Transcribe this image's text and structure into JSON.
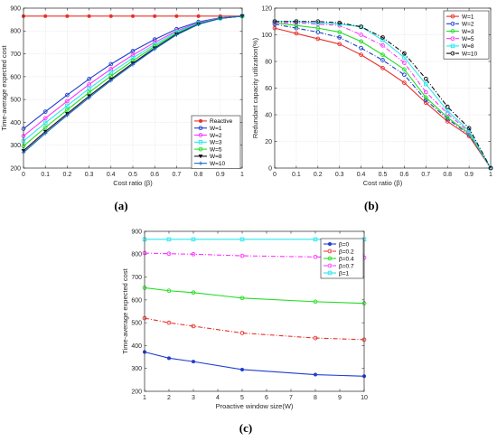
{
  "chart_data": [
    {
      "type": "line",
      "panel_label": "(a)",
      "xlabel": "Cost ratio (β)",
      "ylabel": "Time-average expected cost",
      "xlim": [
        0,
        1
      ],
      "ylim": [
        200,
        900
      ],
      "x_ticks": [
        0,
        0.1,
        0.2,
        0.3,
        0.4,
        0.5,
        0.6,
        0.7,
        0.8,
        0.9,
        1
      ],
      "y_ticks": [
        200,
        300,
        400,
        500,
        600,
        700,
        800,
        900
      ],
      "grid": true,
      "legend_position": "bottom-right",
      "x": [
        0,
        0.1,
        0.2,
        0.3,
        0.4,
        0.5,
        0.6,
        0.7,
        0.8,
        0.9,
        1
      ],
      "series": [
        {
          "name": "Reactive",
          "color": "#e8312b",
          "dash": "",
          "marker": "dot",
          "values": [
            865,
            865,
            865,
            865,
            865,
            865,
            865,
            865,
            865,
            865,
            865
          ]
        },
        {
          "name": "W=1",
          "color": "#1f3fcf",
          "dash": "",
          "marker": "o",
          "values": [
            372,
            447,
            520,
            590,
            655,
            712,
            763,
            808,
            840,
            858,
            865
          ]
        },
        {
          "name": "W=2",
          "color": "#ff33ff",
          "dash": "",
          "marker": "o",
          "values": [
            340,
            418,
            493,
            566,
            633,
            695,
            750,
            800,
            836,
            857,
            865
          ]
        },
        {
          "name": "W=3",
          "color": "#28e8f0",
          "dash": "",
          "marker": "s",
          "values": [
            318,
            398,
            473,
            548,
            618,
            682,
            741,
            795,
            834,
            856,
            865
          ]
        },
        {
          "name": "W=5",
          "color": "#22dd22",
          "dash": "",
          "marker": "o",
          "values": [
            296,
            378,
            455,
            531,
            603,
            670,
            733,
            790,
            832,
            856,
            865
          ]
        },
        {
          "name": "W=8",
          "color": "#111111",
          "dash": "",
          "marker": "v",
          "values": [
            276,
            360,
            438,
            515,
            589,
            659,
            725,
            786,
            830,
            855,
            865
          ]
        },
        {
          "name": "W=10",
          "color": "#1a66cc",
          "dash": "",
          "marker": "+",
          "values": [
            268,
            352,
            431,
            508,
            583,
            653,
            721,
            783,
            829,
            855,
            865
          ]
        }
      ]
    },
    {
      "type": "line",
      "panel_label": "(b)",
      "xlabel": "Cost ratio (β)",
      "ylabel": "Redundant capacity utilization(%)",
      "xlim": [
        0,
        1
      ],
      "ylim": [
        0,
        120
      ],
      "x_ticks": [
        0,
        0.1,
        0.2,
        0.3,
        0.4,
        0.5,
        0.6,
        0.7,
        0.8,
        0.9,
        1
      ],
      "y_ticks": [
        0,
        20,
        40,
        60,
        80,
        100,
        120
      ],
      "grid": true,
      "legend_position": "top-right",
      "x": [
        0,
        0.1,
        0.2,
        0.3,
        0.4,
        0.5,
        0.6,
        0.7,
        0.8,
        0.9,
        1
      ],
      "series": [
        {
          "name": "W=1",
          "color": "#e8312b",
          "dash": "",
          "marker": "o",
          "values": [
            105,
            101,
            97,
            93,
            85,
            75,
            64,
            49,
            35,
            24,
            0
          ]
        },
        {
          "name": "W=2",
          "color": "#1f3fcf",
          "dash": "5,2,1,2",
          "marker": "o",
          "values": [
            108,
            105,
            102,
            98,
            90,
            81,
            70,
            51,
            37,
            25,
            0
          ]
        },
        {
          "name": "W=3",
          "color": "#22dd22",
          "dash": "",
          "marker": "o",
          "values": [
            109,
            107,
            105,
            102,
            95,
            85,
            74,
            53,
            38,
            26,
            0
          ]
        },
        {
          "name": "W=5",
          "color": "#ff33ff",
          "dash": "5,2,1,2",
          "marker": "o",
          "values": [
            109,
            109,
            108,
            107,
            100,
            92,
            79,
            57,
            41,
            27,
            0
          ]
        },
        {
          "name": "W=8",
          "color": "#28e8f0",
          "dash": "",
          "marker": "s",
          "values": [
            110,
            110,
            109,
            108,
            106,
            96,
            83,
            63,
            43,
            28,
            0
          ]
        },
        {
          "name": "W=10",
          "color": "#111111",
          "dash": "5,2,1,2",
          "marker": "o",
          "values": [
            110,
            110,
            110,
            109,
            106,
            98,
            86,
            67,
            46,
            30,
            0
          ]
        }
      ]
    },
    {
      "type": "line",
      "panel_label": "(c)",
      "xlabel": "Proactive window size(W)",
      "ylabel": "Time-average expected cost",
      "xlim": [
        1,
        10
      ],
      "ylim": [
        200,
        900
      ],
      "x_ticks": [
        1,
        2,
        3,
        4,
        5,
        6,
        7,
        8,
        9,
        10
      ],
      "y_ticks": [
        200,
        300,
        400,
        500,
        600,
        700,
        800,
        900
      ],
      "grid": false,
      "legend_position": "top-right",
      "x": [
        1,
        2,
        3,
        5,
        8,
        10
      ],
      "series": [
        {
          "name": "β=0",
          "color": "#1f3fcf",
          "dash": "",
          "marker": "dot",
          "values": [
            372,
            345,
            330,
            295,
            273,
            266
          ]
        },
        {
          "name": "β=0.2",
          "color": "#e8312b",
          "dash": "5,2,1,2",
          "marker": "o",
          "values": [
            520,
            500,
            485,
            455,
            433,
            426
          ]
        },
        {
          "name": "β=0.4",
          "color": "#22dd22",
          "dash": "",
          "marker": "o",
          "values": [
            653,
            640,
            632,
            608,
            592,
            585
          ]
        },
        {
          "name": "β=0.7",
          "color": "#ff33ff",
          "dash": "5,2,1,2",
          "marker": "o",
          "values": [
            805,
            802,
            800,
            793,
            788,
            785
          ]
        },
        {
          "name": "β=1",
          "color": "#28e8f0",
          "dash": "",
          "marker": "s",
          "values": [
            865,
            865,
            865,
            865,
            865,
            865
          ]
        }
      ]
    }
  ]
}
